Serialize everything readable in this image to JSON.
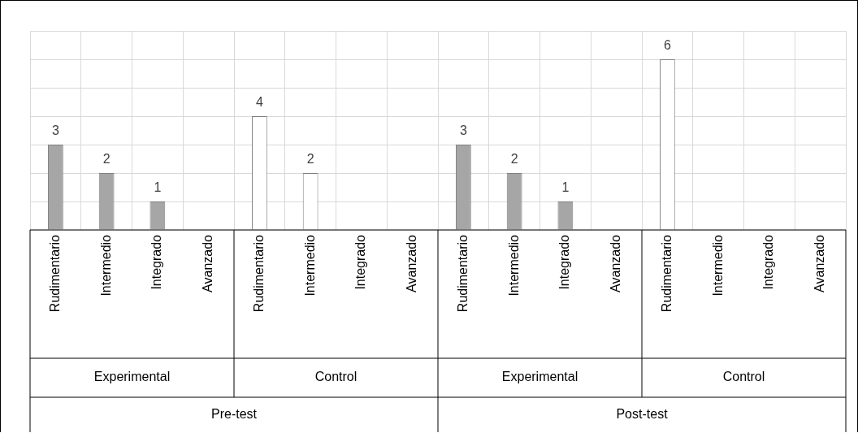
{
  "chart_data": {
    "type": "bar",
    "categories": [
      "Rudimentario",
      "Intermedio",
      "Integrado",
      "Avanzado",
      "Rudimentario",
      "Intermedio",
      "Integrado",
      "Avanzado",
      "Rudimentario",
      "Intermedio",
      "Integrado",
      "Avanzado",
      "Rudimentario",
      "Intermedio",
      "Integrado",
      "Avanzado"
    ],
    "values": [
      3,
      2,
      1,
      0,
      4,
      2,
      0,
      0,
      3,
      2,
      1,
      0,
      6,
      0,
      0,
      0
    ],
    "value_labels": [
      "3",
      "2",
      "1",
      null,
      "4",
      "2",
      null,
      null,
      "3",
      "2",
      "1",
      null,
      "6",
      null,
      null,
      null
    ],
    "colors": [
      "#a6a6a6",
      "#a6a6a6",
      "#a6a6a6",
      "#a6a6a6",
      "#ffffff",
      "#ffffff",
      "#ffffff",
      "#ffffff",
      "#a6a6a6",
      "#a6a6a6",
      "#a6a6a6",
      "#a6a6a6",
      "#ffffff",
      "#ffffff",
      "#ffffff",
      "#ffffff"
    ],
    "ylim": [
      0,
      7
    ],
    "yticks": [
      0,
      1,
      2,
      3,
      4,
      5,
      6,
      7
    ],
    "grid": true,
    "legend": false,
    "tick_labels": "x",
    "annotations": [
      "Experimental",
      "Control",
      "Experimental",
      "Control",
      "Pre-test",
      "Post-test"
    ]
  }
}
